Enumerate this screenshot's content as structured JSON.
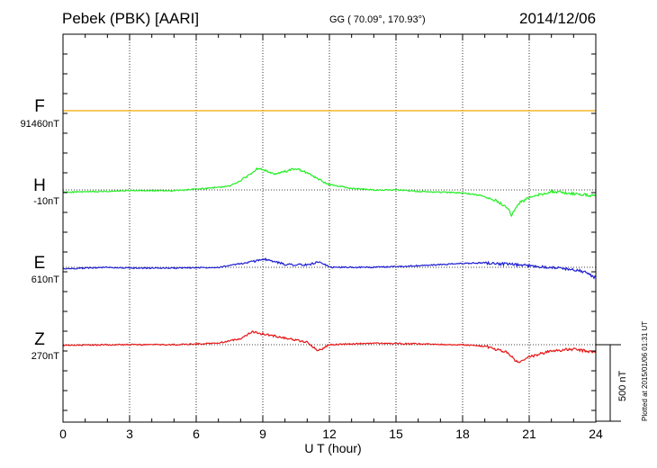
{
  "header": {
    "station": "Pebek (PBK)  [AARI]",
    "coordinates": "GG ( 70.09°, 170.93°)",
    "date": "2014/12/06"
  },
  "footer": {
    "plotted_note": "Plotted at 2015/01/06 01:31 UT"
  },
  "chart_data": {
    "type": "line",
    "xlabel": "U T (hour)",
    "xlim": [
      0,
      24
    ],
    "xticks": [
      "0",
      "3",
      "6",
      "9",
      "12",
      "15",
      "18",
      "21",
      "24"
    ],
    "grid": true,
    "scale_bar": {
      "value_nT": 500,
      "label": "500 nT"
    },
    "series": [
      {
        "name": "F",
        "baseline": "91460nT",
        "color": "#f5a800",
        "x": [
          0,
          24
        ],
        "y": [
          0,
          0
        ]
      },
      {
        "name": "H",
        "baseline": "-10nT",
        "color": "#22ee22",
        "x": [
          0,
          2,
          3,
          5,
          6.5,
          7.5,
          8,
          8.5,
          8.8,
          9,
          9.5,
          10,
          10.5,
          11,
          11.5,
          12,
          13,
          14,
          15,
          16,
          17,
          18,
          18.5,
          19,
          19.5,
          20,
          20.2,
          20.5,
          21,
          22,
          23,
          24
        ],
        "y": [
          -15,
          -10,
          -5,
          -5,
          10,
          25,
          60,
          110,
          145,
          135,
          100,
          120,
          140,
          110,
          70,
          35,
          10,
          0,
          0,
          -10,
          -15,
          -20,
          -30,
          -40,
          -70,
          -110,
          -170,
          -90,
          -50,
          -10,
          -25,
          -40
        ]
      },
      {
        "name": "E",
        "baseline": "610nT",
        "color": "#1e1ed2",
        "x": [
          0,
          2,
          3,
          5,
          7,
          8.5,
          9,
          10,
          11,
          11.5,
          12,
          14,
          16,
          18,
          19,
          20,
          21,
          22,
          23,
          23.5,
          24
        ],
        "y": [
          -10,
          0,
          -5,
          -5,
          0,
          35,
          55,
          20,
          15,
          35,
          0,
          0,
          10,
          25,
          30,
          20,
          10,
          0,
          -15,
          -30,
          -70
        ]
      },
      {
        "name": "Z",
        "baseline": "270nT",
        "color": "#e61414",
        "x": [
          0,
          2,
          3,
          5,
          7,
          8,
          8.5,
          9,
          10,
          11,
          11.5,
          12,
          14,
          16,
          18,
          19,
          20,
          20.5,
          21,
          22,
          23,
          24
        ],
        "y": [
          -5,
          0,
          0,
          0,
          10,
          40,
          85,
          70,
          45,
          15,
          -40,
          0,
          10,
          5,
          0,
          -10,
          -50,
          -120,
          -80,
          -40,
          -30,
          -50
        ]
      }
    ]
  }
}
